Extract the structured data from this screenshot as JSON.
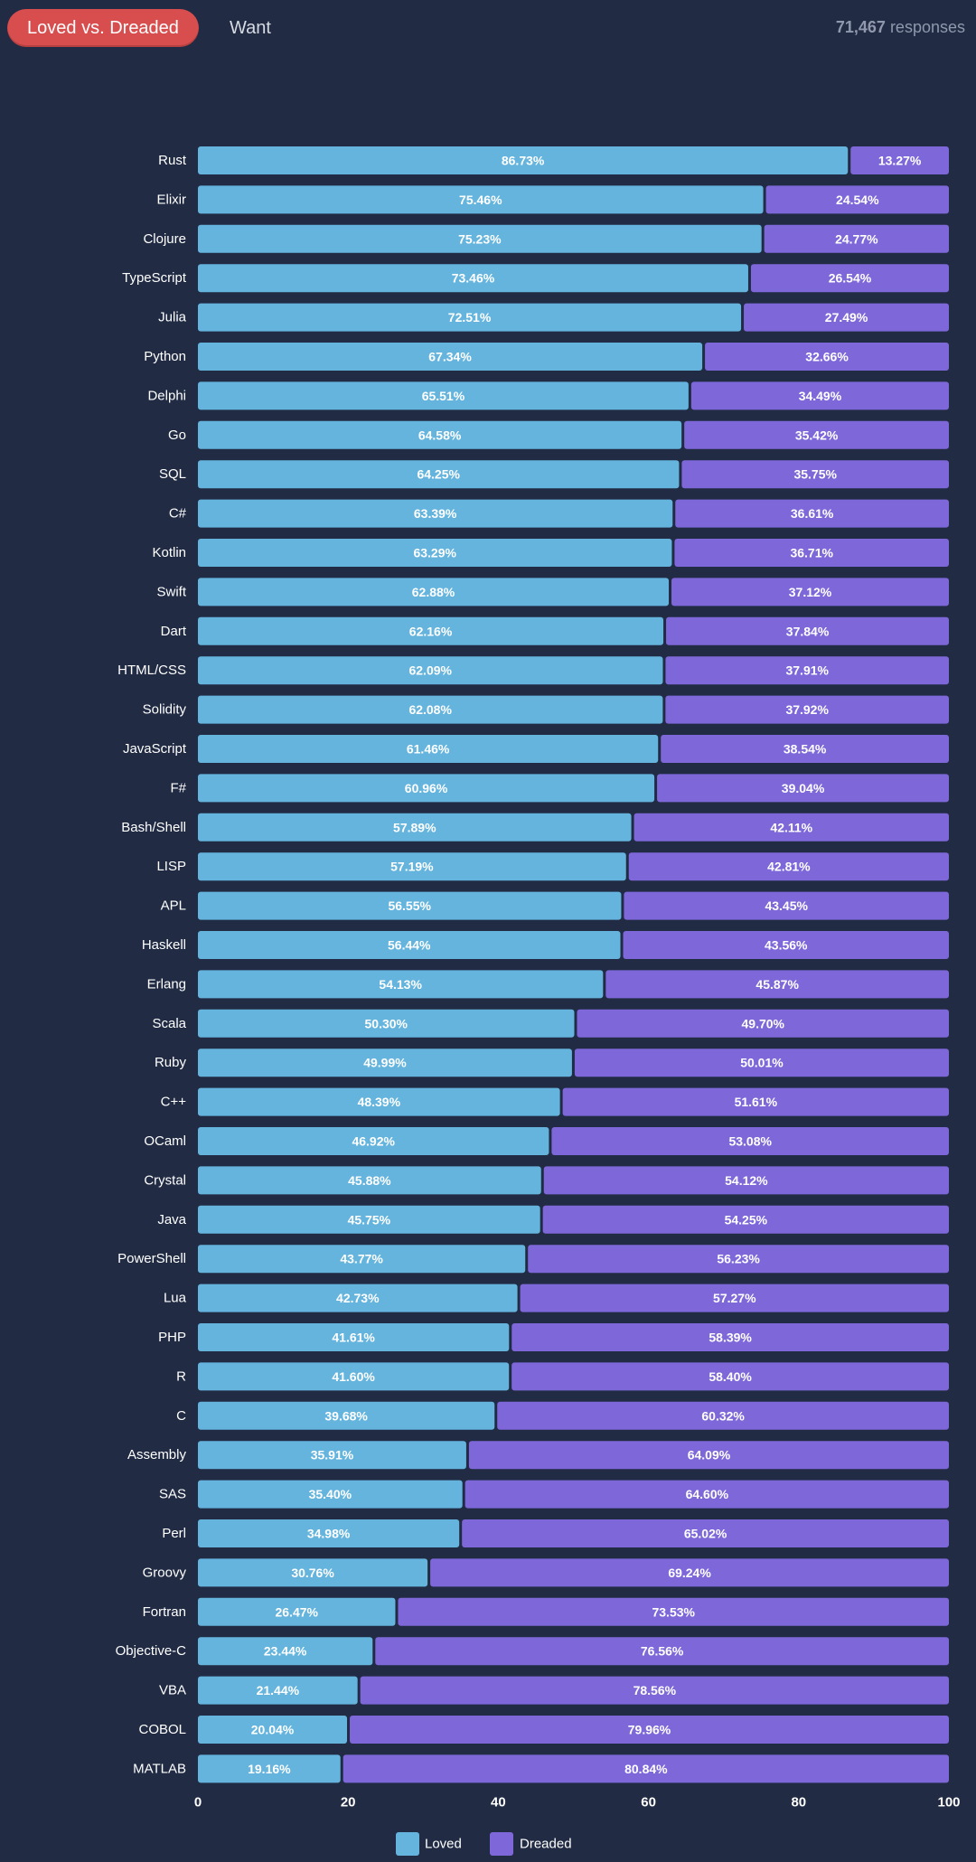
{
  "header": {
    "active_tab": "Loved vs. Dreaded",
    "other_tab": "Want",
    "responses_count": "71,467",
    "responses_label": "responses"
  },
  "colors": {
    "loved": "#64b4dd",
    "dreaded": "#7e68d9",
    "active_tab": "#d84d4d",
    "background": "#212b44"
  },
  "chart_data": {
    "type": "bar",
    "orientation": "horizontal",
    "stacked": true,
    "categories": [
      "Rust",
      "Elixir",
      "Clojure",
      "TypeScript",
      "Julia",
      "Python",
      "Delphi",
      "Go",
      "SQL",
      "C#",
      "Kotlin",
      "Swift",
      "Dart",
      "HTML/CSS",
      "Solidity",
      "JavaScript",
      "F#",
      "Bash/Shell",
      "LISP",
      "APL",
      "Haskell",
      "Erlang",
      "Scala",
      "Ruby",
      "C++",
      "OCaml",
      "Crystal",
      "Java",
      "PowerShell",
      "Lua",
      "PHP",
      "R",
      "C",
      "Assembly",
      "SAS",
      "Perl",
      "Groovy",
      "Fortran",
      "Objective-C",
      "VBA",
      "COBOL",
      "MATLAB"
    ],
    "series": [
      {
        "name": "Loved",
        "values": [
          86.73,
          75.46,
          75.23,
          73.46,
          72.51,
          67.34,
          65.51,
          64.58,
          64.25,
          63.39,
          63.29,
          62.88,
          62.16,
          62.09,
          62.08,
          61.46,
          60.96,
          57.89,
          57.19,
          56.55,
          56.44,
          54.13,
          50.3,
          49.99,
          48.39,
          46.92,
          45.88,
          45.75,
          43.77,
          42.73,
          41.61,
          41.6,
          39.68,
          35.91,
          35.4,
          34.98,
          30.76,
          26.47,
          23.44,
          21.44,
          20.04,
          19.16
        ],
        "labels": [
          "86.73%",
          "75.46%",
          "75.23%",
          "73.46%",
          "72.51%",
          "67.34%",
          "65.51%",
          "64.58%",
          "64.25%",
          "63.39%",
          "63.29%",
          "62.88%",
          "62.16%",
          "62.09%",
          "62.08%",
          "61.46%",
          "60.96%",
          "57.89%",
          "57.19%",
          "56.55%",
          "56.44%",
          "54.13%",
          "50.30%",
          "49.99%",
          "48.39%",
          "46.92%",
          "45.88%",
          "45.75%",
          "43.77%",
          "42.73%",
          "41.61%",
          "41.60%",
          "39.68%",
          "35.91%",
          "35.40%",
          "34.98%",
          "30.76%",
          "26.47%",
          "23.44%",
          "21.44%",
          "20.04%",
          "19.16%"
        ]
      },
      {
        "name": "Dreaded",
        "values": [
          13.27,
          24.54,
          24.77,
          26.54,
          27.49,
          32.66,
          34.49,
          35.42,
          35.75,
          36.61,
          36.71,
          37.12,
          37.84,
          37.91,
          37.92,
          38.54,
          39.04,
          42.11,
          42.81,
          43.45,
          43.56,
          45.87,
          49.7,
          50.01,
          51.61,
          53.08,
          54.12,
          54.25,
          56.23,
          57.27,
          58.39,
          58.4,
          60.32,
          64.09,
          64.6,
          65.02,
          69.24,
          73.53,
          76.56,
          78.56,
          79.96,
          80.84
        ],
        "labels": [
          "13.27%",
          "24.54%",
          "24.77%",
          "26.54%",
          "27.49%",
          "32.66%",
          "34.49%",
          "35.42%",
          "35.75%",
          "36.61%",
          "36.71%",
          "37.12%",
          "37.84%",
          "37.91%",
          "37.92%",
          "38.54%",
          "39.04%",
          "42.11%",
          "42.81%",
          "43.45%",
          "43.56%",
          "45.87%",
          "49.70%",
          "50.01%",
          "51.61%",
          "53.08%",
          "54.12%",
          "54.25%",
          "56.23%",
          "57.27%",
          "58.39%",
          "58.40%",
          "60.32%",
          "64.09%",
          "64.60%",
          "65.02%",
          "69.24%",
          "73.53%",
          "76.56%",
          "78.56%",
          "79.96%",
          "80.84%"
        ]
      }
    ],
    "xlim": [
      0,
      100
    ],
    "xticks": [
      "0",
      "20",
      "40",
      "60",
      "80",
      "100"
    ],
    "legend": [
      "Loved",
      "Dreaded"
    ],
    "legend_position": "bottom-center",
    "grid": false
  }
}
